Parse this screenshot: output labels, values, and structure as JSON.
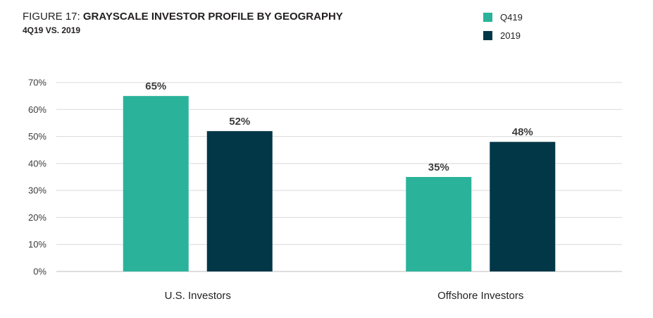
{
  "figure_label": "FIGURE 17:",
  "figure_title": "GRAYSCALE INVESTOR PROFILE BY GEOGRAPHY",
  "subtitle": "4Q19 VS. 2019",
  "legend": [
    {
      "label": "Q419",
      "color": "#2ab39a"
    },
    {
      "label": "2019",
      "color": "#023748"
    }
  ],
  "chart_data": {
    "type": "bar",
    "title": "GRAYSCALE INVESTOR PROFILE BY GEOGRAPHY",
    "subtitle": "4Q19 VS. 2019",
    "categories": [
      "U.S. Investors",
      "Offshore Investors"
    ],
    "series": [
      {
        "name": "Q419",
        "values": [
          65,
          35
        ],
        "labels": [
          "65%",
          "35%"
        ],
        "color": "#2ab39a"
      },
      {
        "name": "2019",
        "values": [
          52,
          48
        ],
        "labels": [
          "52%",
          "48%"
        ],
        "color": "#023748"
      }
    ],
    "ylim": [
      0,
      70
    ],
    "yticks": [
      0,
      10,
      20,
      30,
      40,
      50,
      60,
      70
    ],
    "ytick_labels": [
      "0%",
      "10%",
      "20%",
      "30%",
      "40%",
      "50%",
      "60%",
      "70%"
    ],
    "xlabel": "",
    "ylabel": "",
    "grid": true,
    "legend_position": "top-right"
  }
}
